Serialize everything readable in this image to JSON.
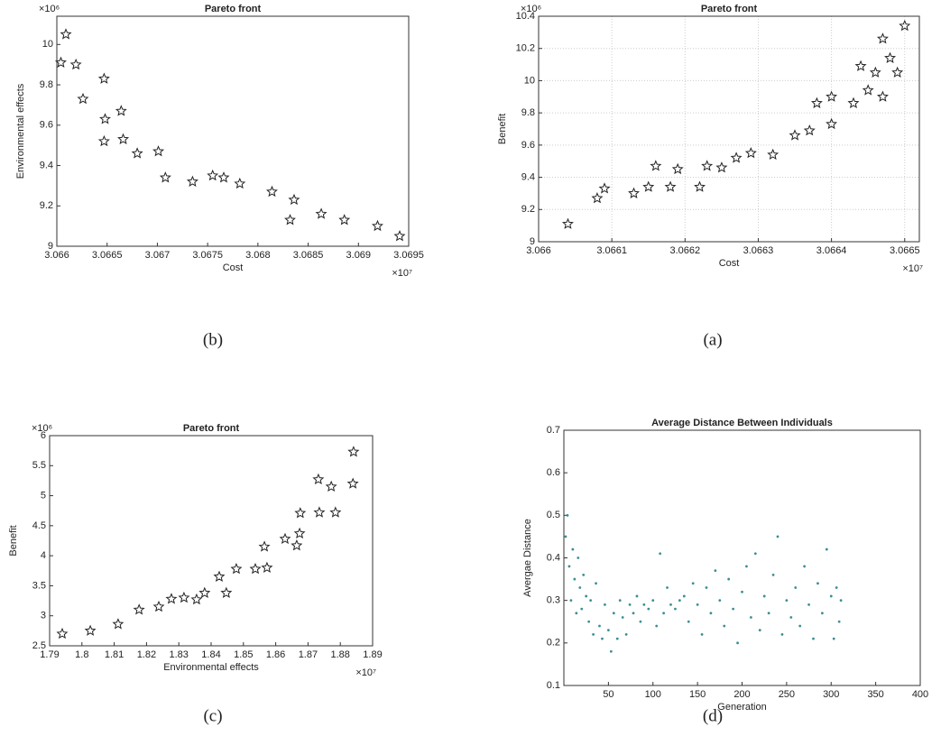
{
  "chart_data": [
    {
      "type": "scatter",
      "caption": "(b)",
      "title": "Pareto front",
      "x_label": "Cost",
      "y_label": "Environmental effects",
      "x_multiplier": "×10⁷",
      "y_multiplier": "×10⁶",
      "marker": "star",
      "color": "#222222",
      "grid": false,
      "x": [
        3.06604,
        3.06609,
        3.06619,
        3.06626,
        3.06647,
        3.06648,
        3.06647,
        3.06664,
        3.06666,
        3.0668,
        3.06701,
        3.06708,
        3.06735,
        3.06755,
        3.06766,
        3.06782,
        3.06814,
        3.06836,
        3.06832,
        3.06863,
        3.06886,
        3.06919,
        3.06941
      ],
      "values": [
        9.91,
        10.05,
        9.9,
        9.73,
        9.83,
        9.63,
        9.52,
        9.67,
        9.53,
        9.46,
        9.47,
        9.34,
        9.32,
        9.35,
        9.34,
        9.31,
        9.27,
        9.23,
        9.13,
        9.16,
        9.13,
        9.1,
        9.05
      ],
      "xlim": [
        3.066,
        3.0695
      ],
      "xticks": [
        3.066,
        3.0665,
        3.067,
        3.0675,
        3.068,
        3.0685,
        3.069,
        3.0695
      ],
      "ylim": [
        9,
        10.14
      ],
      "yticks": [
        9,
        9.2,
        9.4,
        9.6,
        9.8,
        10
      ]
    },
    {
      "type": "scatter",
      "caption": "(a)",
      "title": "Pareto front",
      "x_label": "Cost",
      "y_label": "Benefit",
      "x_multiplier": "×10⁷",
      "y_multiplier": "×10⁶",
      "marker": "star",
      "color": "#222222",
      "grid": true,
      "x": [
        3.06604,
        3.06608,
        3.06609,
        3.06613,
        3.06615,
        3.06616,
        3.06618,
        3.06619,
        3.06622,
        3.06623,
        3.06625,
        3.06627,
        3.06629,
        3.06632,
        3.06635,
        3.06637,
        3.06638,
        3.0664,
        3.0664,
        3.06643,
        3.06644,
        3.06645,
        3.06646,
        3.06647,
        3.06647,
        3.06648,
        3.06649,
        3.0665
      ],
      "values": [
        9.11,
        9.27,
        9.33,
        9.3,
        9.34,
        9.47,
        9.34,
        9.45,
        9.34,
        9.47,
        9.46,
        9.52,
        9.55,
        9.54,
        9.66,
        9.69,
        9.86,
        9.9,
        9.73,
        9.86,
        10.09,
        9.94,
        10.05,
        9.9,
        10.26,
        10.14,
        10.05,
        10.34
      ],
      "xlim": [
        3.066,
        3.06652
      ],
      "xticks": [
        3.066,
        3.0661,
        3.0662,
        3.0663,
        3.0664,
        3.0665
      ],
      "ylim": [
        9,
        10.4
      ],
      "yticks": [
        9,
        9.2,
        9.4,
        9.6,
        9.8,
        10,
        10.2,
        10.4
      ]
    },
    {
      "type": "scatter",
      "caption": "(c)",
      "title": "Pareto front",
      "x_label": "Environmental effects",
      "y_label": "Benefit",
      "x_multiplier": "×10⁷",
      "y_multiplier": "×10⁶",
      "marker": "star",
      "color": "#222222",
      "grid": false,
      "x": [
        1.7939,
        1.8026,
        1.8112,
        1.8177,
        1.8238,
        1.8277,
        1.8316,
        1.8355,
        1.838,
        1.8425,
        1.8447,
        1.8478,
        1.8537,
        1.8565,
        1.8573,
        1.8629,
        1.8665,
        1.8674,
        1.8676,
        1.8732,
        1.8735,
        1.8772,
        1.8785,
        1.8841,
        1.8839
      ],
      "values": [
        2.7,
        2.75,
        2.86,
        3.1,
        3.15,
        3.28,
        3.3,
        3.27,
        3.38,
        3.65,
        3.38,
        3.78,
        3.78,
        4.15,
        3.8,
        4.28,
        4.17,
        4.37,
        4.71,
        5.27,
        4.72,
        5.15,
        4.72,
        5.73,
        5.2
      ],
      "xlim": [
        1.79,
        1.89
      ],
      "xticks": [
        1.79,
        1.8,
        1.81,
        1.82,
        1.83,
        1.84,
        1.85,
        1.86,
        1.87,
        1.88,
        1.89
      ],
      "ylim": [
        2.5,
        6
      ],
      "yticks": [
        2.5,
        3,
        3.5,
        4,
        4.5,
        5,
        5.5,
        6
      ]
    },
    {
      "type": "scatter",
      "caption": "(d)",
      "title": "Average Distance Between Individuals",
      "x_label": "Generation",
      "y_label": "Avergae Distance",
      "marker": "dot",
      "color": "#3a8f96",
      "grid": false,
      "x": [
        2,
        4,
        6,
        8,
        10,
        12,
        14,
        16,
        18,
        20,
        22,
        25,
        28,
        30,
        33,
        36,
        40,
        43,
        46,
        50,
        53,
        56,
        60,
        63,
        66,
        70,
        74,
        78,
        82,
        86,
        90,
        95,
        100,
        104,
        108,
        112,
        116,
        120,
        125,
        130,
        135,
        140,
        145,
        150,
        155,
        160,
        165,
        170,
        175,
        180,
        185,
        190,
        195,
        200,
        205,
        210,
        215,
        220,
        225,
        230,
        235,
        240,
        245,
        250,
        255,
        260,
        265,
        270,
        275,
        280,
        285,
        290,
        295,
        300,
        303,
        306,
        309,
        311
      ],
      "values": [
        0.45,
        0.5,
        0.38,
        0.3,
        0.42,
        0.35,
        0.27,
        0.4,
        0.33,
        0.28,
        0.36,
        0.31,
        0.25,
        0.3,
        0.22,
        0.34,
        0.24,
        0.21,
        0.29,
        0.23,
        0.18,
        0.27,
        0.21,
        0.3,
        0.26,
        0.22,
        0.29,
        0.27,
        0.31,
        0.25,
        0.29,
        0.28,
        0.3,
        0.24,
        0.41,
        0.27,
        0.33,
        0.29,
        0.28,
        0.3,
        0.31,
        0.25,
        0.34,
        0.29,
        0.22,
        0.33,
        0.27,
        0.37,
        0.3,
        0.24,
        0.35,
        0.28,
        0.2,
        0.32,
        0.38,
        0.26,
        0.41,
        0.23,
        0.31,
        0.27,
        0.36,
        0.45,
        0.22,
        0.3,
        0.26,
        0.33,
        0.24,
        0.38,
        0.29,
        0.21,
        0.34,
        0.27,
        0.42,
        0.31,
        0.21,
        0.33,
        0.25,
        0.3
      ],
      "xlim": [
        0,
        400
      ],
      "xticks": [
        50,
        100,
        150,
        200,
        250,
        300,
        350,
        400
      ],
      "ylim": [
        0.1,
        0.7
      ],
      "yticks": [
        0.1,
        0.2,
        0.3,
        0.4,
        0.5,
        0.6,
        0.7
      ]
    }
  ]
}
